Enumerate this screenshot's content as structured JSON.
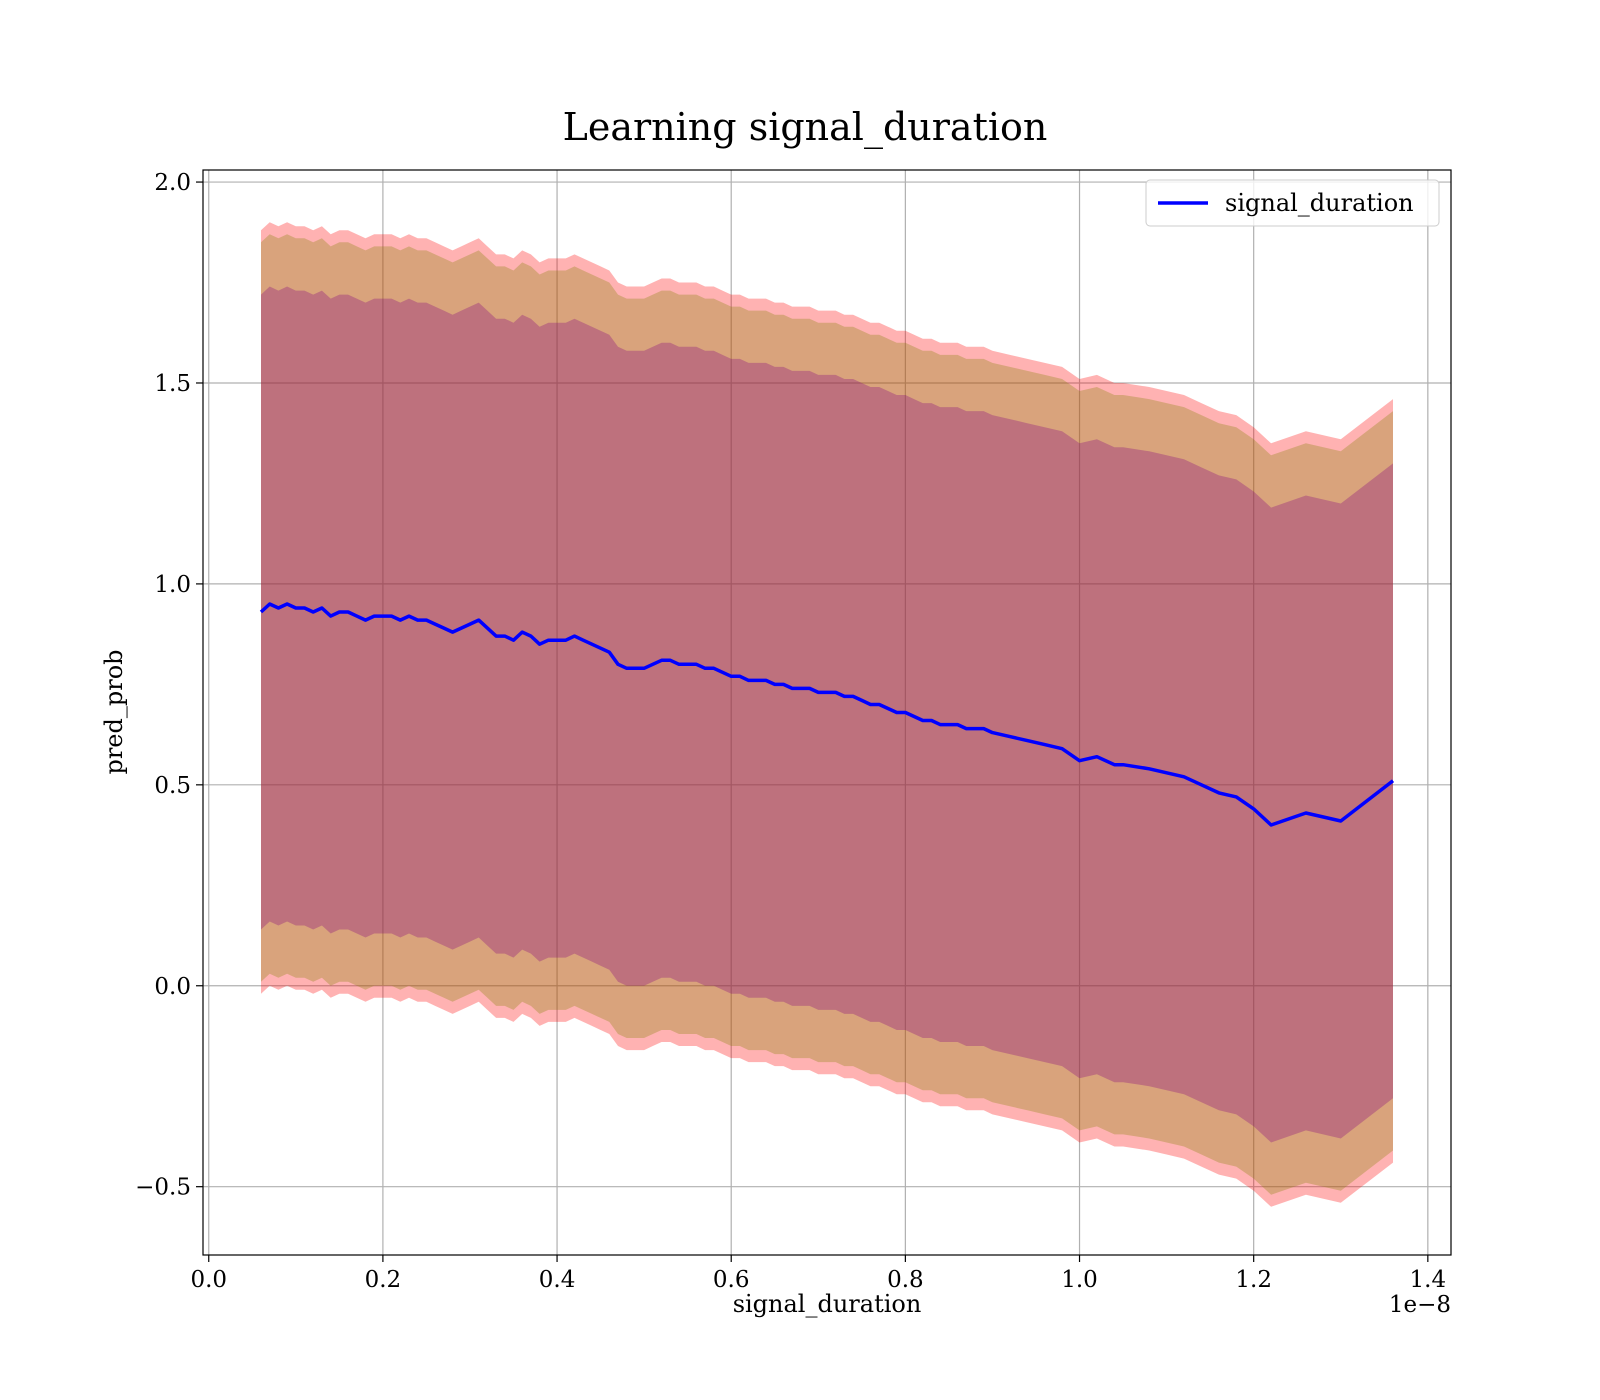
{
  "chart_data": {
    "type": "line",
    "title": "Learning signal_duration",
    "xlabel": "signal_duration",
    "ylabel": "pred_prob",
    "x_offset_label": "1e−8",
    "xlim": [
      -0.0066,
      1.4266
    ],
    "ylim": [
      -0.67,
      2.03
    ],
    "x_ticks": [
      0.0,
      0.2,
      0.4,
      0.6,
      0.8,
      1.0,
      1.2,
      1.4
    ],
    "x_tick_labels": [
      "0.0",
      "0.2",
      "0.4",
      "0.6",
      "0.8",
      "1.0",
      "1.2",
      "1.4"
    ],
    "y_ticks": [
      -0.5,
      0.0,
      0.5,
      1.0,
      1.5,
      2.0
    ],
    "y_tick_labels": [
      "−0.5",
      "0.0",
      "0.5",
      "1.0",
      "1.5",
      "2.0"
    ],
    "grid": true,
    "legend_position": "top-right",
    "colors": {
      "line": "#0000ff",
      "outer_band": "#ff0000",
      "middle_band": "#808000",
      "inner_band": "#800080"
    },
    "x": [
      0.06,
      0.07,
      0.08,
      0.09,
      0.1,
      0.11,
      0.12,
      0.13,
      0.14,
      0.15,
      0.16,
      0.17,
      0.18,
      0.19,
      0.2,
      0.21,
      0.22,
      0.23,
      0.24,
      0.25,
      0.26,
      0.27,
      0.28,
      0.29,
      0.3,
      0.31,
      0.32,
      0.33,
      0.34,
      0.35,
      0.36,
      0.37,
      0.38,
      0.39,
      0.4,
      0.41,
      0.42,
      0.43,
      0.44,
      0.45,
      0.46,
      0.47,
      0.48,
      0.49,
      0.5,
      0.51,
      0.52,
      0.53,
      0.54,
      0.55,
      0.56,
      0.57,
      0.58,
      0.59,
      0.6,
      0.61,
      0.62,
      0.63,
      0.64,
      0.65,
      0.66,
      0.67,
      0.68,
      0.69,
      0.7,
      0.71,
      0.72,
      0.73,
      0.74,
      0.75,
      0.76,
      0.77,
      0.78,
      0.79,
      0.8,
      0.81,
      0.82,
      0.83,
      0.84,
      0.85,
      0.86,
      0.87,
      0.88,
      0.89,
      0.9,
      0.92,
      0.94,
      0.96,
      0.98,
      1.0,
      1.02,
      1.04,
      1.05,
      1.08,
      1.1,
      1.12,
      1.14,
      1.16,
      1.18,
      1.2,
      1.22,
      1.26,
      1.3,
      1.36
    ],
    "series": [
      {
        "name": "signal_duration",
        "values": [
          0.93,
          0.95,
          0.94,
          0.95,
          0.94,
          0.94,
          0.93,
          0.94,
          0.92,
          0.93,
          0.93,
          0.92,
          0.91,
          0.92,
          0.92,
          0.92,
          0.91,
          0.92,
          0.91,
          0.91,
          0.9,
          0.89,
          0.88,
          0.89,
          0.9,
          0.91,
          0.89,
          0.87,
          0.87,
          0.86,
          0.88,
          0.87,
          0.85,
          0.86,
          0.86,
          0.86,
          0.87,
          0.86,
          0.85,
          0.84,
          0.83,
          0.8,
          0.79,
          0.79,
          0.79,
          0.8,
          0.81,
          0.81,
          0.8,
          0.8,
          0.8,
          0.79,
          0.79,
          0.78,
          0.77,
          0.77,
          0.76,
          0.76,
          0.76,
          0.75,
          0.75,
          0.74,
          0.74,
          0.74,
          0.73,
          0.73,
          0.73,
          0.72,
          0.72,
          0.71,
          0.7,
          0.7,
          0.69,
          0.68,
          0.68,
          0.67,
          0.66,
          0.66,
          0.65,
          0.65,
          0.65,
          0.64,
          0.64,
          0.64,
          0.63,
          0.62,
          0.61,
          0.6,
          0.59,
          0.56,
          0.57,
          0.55,
          0.55,
          0.54,
          0.53,
          0.52,
          0.5,
          0.48,
          0.47,
          0.44,
          0.4,
          0.43,
          0.41,
          0.51
        ],
        "band_half_widths": {
          "inner": 0.79,
          "middle": 0.92,
          "outer": 0.95
        }
      }
    ]
  }
}
